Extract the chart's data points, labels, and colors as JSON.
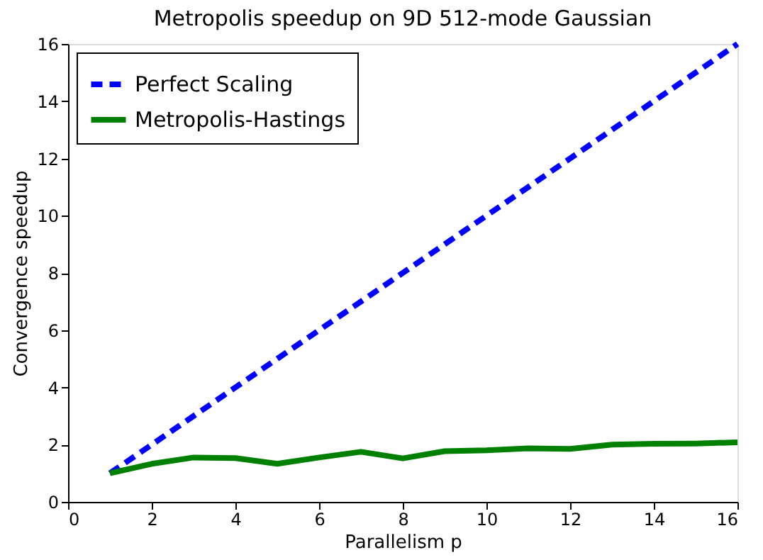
{
  "chart_data": {
    "type": "line",
    "title": "Metropolis speedup on 9D 512-mode Gaussian",
    "xlabel": "Parallelism p",
    "ylabel": "Convergence speedup",
    "x": [
      1,
      2,
      3,
      4,
      5,
      6,
      7,
      8,
      9,
      10,
      11,
      12,
      13,
      14,
      15,
      16
    ],
    "series": [
      {
        "name": "Perfect Scaling",
        "color": "#0000ff",
        "line_style": "dashed",
        "values": [
          1,
          2,
          3,
          4,
          5,
          6,
          7,
          8,
          9,
          10,
          11,
          12,
          13,
          14,
          15,
          16
        ]
      },
      {
        "name": "Metropolis-Hastings",
        "color": "#008000",
        "line_style": "solid",
        "values": [
          1.0,
          1.33,
          1.55,
          1.53,
          1.33,
          1.55,
          1.75,
          1.52,
          1.77,
          1.8,
          1.87,
          1.85,
          2.0,
          2.03,
          2.04,
          2.08
        ]
      }
    ],
    "xlim": [
      0,
      16
    ],
    "xticks": [
      0,
      2,
      4,
      6,
      8,
      10,
      12,
      14,
      16
    ],
    "ylim": [
      0,
      16
    ],
    "yticks": [
      0,
      2,
      4,
      6,
      8,
      10,
      12,
      14,
      16
    ],
    "grid": false,
    "legend": "top left",
    "marker": "none"
  }
}
